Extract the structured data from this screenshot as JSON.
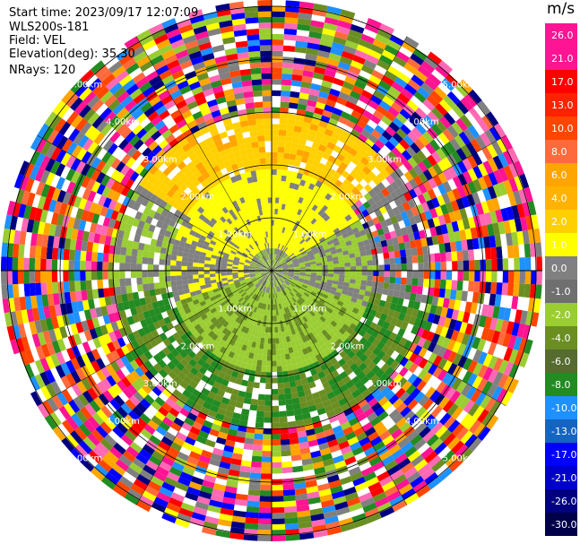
{
  "header": {
    "start_time": "Start time: 2023/09/17 12:07:09",
    "instrument": "WLS200s-181",
    "field": "Field: VEL",
    "elevation": "Elevation(deg): 35.30",
    "nrays": "NRays: 120"
  },
  "range_rings": {
    "labels": [
      "1.00km",
      "2.00km",
      "3.00km",
      "4.00km",
      "5.00km",
      "6.00km"
    ]
  },
  "colorbar": {
    "unit": "m/s",
    "ticks": [
      "26.0",
      "21.0",
      "17.0",
      "13.0",
      "10.0",
      "8.0",
      "6.0",
      "4.0",
      "2.0",
      "1.0",
      "0.0",
      "-1.0",
      "-2.0",
      "-4.0",
      "-6.0",
      "-8.0",
      "-10.0",
      "-13.0",
      "-17.0",
      "-21.0",
      "-26.0",
      "-30.0"
    ],
    "colors": [
      "#ff1493",
      "#ff1493",
      "#ff0000",
      "#ff2200",
      "#ff4500",
      "#ff6a3c",
      "#ffa500",
      "#ffb300",
      "#ffd000",
      "#ffff00",
      "#808080",
      "#6f6f6f",
      "#9acd32",
      "#6b8e23",
      "#556b2f",
      "#228b22",
      "#1e90ff",
      "#1565c0",
      "#0000ff",
      "#0000cd",
      "#000080",
      "#00004a"
    ]
  },
  "legend_colors": {
    "background": "#ffffff",
    "ring_line": "#000000"
  }
}
